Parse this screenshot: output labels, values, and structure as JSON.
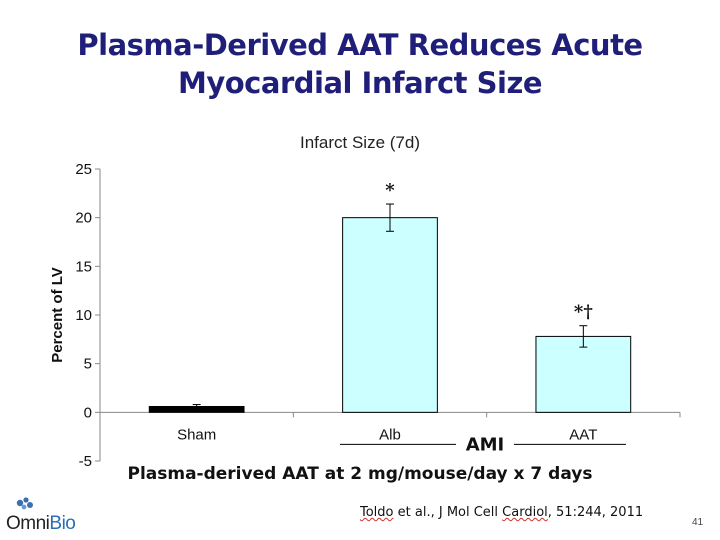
{
  "slide": {
    "title_line1": "Plasma-Derived AAT Reduces Acute",
    "title_line2": "Myocardial Infarct Size",
    "caption": "Plasma-derived AAT at 2 mg/mouse/day x 7 days",
    "citation_pre": "Toldo",
    "citation_mid": " et al., J Mol Cell ",
    "citation_cardiol": "Cardiol",
    "citation_post": ", 51:244, 2011",
    "page_number": "41"
  },
  "logo": {
    "text_a": "Omni",
    "text_b": "Bio"
  },
  "chart_data": {
    "type": "bar",
    "title": "Infarct Size (7d)",
    "ylabel": "Percent of LV",
    "xlabel": "",
    "ylim": [
      -5,
      25
    ],
    "yticks": [
      -5,
      0,
      5,
      10,
      15,
      20,
      25
    ],
    "categories": [
      "Sham",
      "Alb",
      "AAT"
    ],
    "values": [
      0.6,
      20.0,
      7.8
    ],
    "errors": [
      0.2,
      1.4,
      1.1
    ],
    "significance": [
      "",
      "*",
      "*†"
    ],
    "group_label": "AMI",
    "grid": false,
    "colors": {
      "sham": "#000000",
      "bar": "#ccffff",
      "axis": "#888888"
    }
  }
}
